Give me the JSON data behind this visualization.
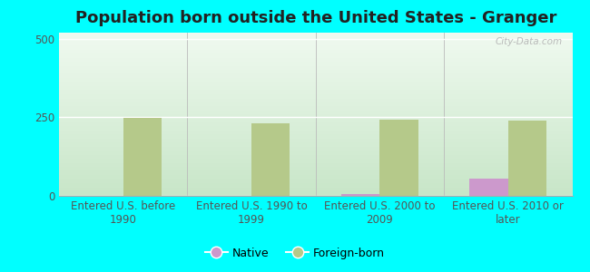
{
  "title": "Population born outside the United States - Granger",
  "background_color": "#00FFFF",
  "categories": [
    "Entered U.S. before\n1990",
    "Entered U.S. 1990 to\n1999",
    "Entered U.S. 2000 to\n2009",
    "Entered U.S. 2010 or\nlater"
  ],
  "native_values": [
    0,
    0,
    5,
    55
  ],
  "foreign_born_values": [
    248,
    232,
    242,
    240
  ],
  "native_color": "#cc99cc",
  "foreign_born_color": "#b5c98a",
  "ylim": [
    0,
    520
  ],
  "yticks": [
    0,
    250,
    500
  ],
  "bar_width": 0.3,
  "watermark": "City-Data.com",
  "legend_labels": [
    "Native",
    "Foreign-born"
  ],
  "title_fontsize": 13,
  "tick_fontsize": 8.5,
  "legend_fontsize": 9,
  "grad_top": "#e8f5e8",
  "grad_bottom": "#f7fff7"
}
